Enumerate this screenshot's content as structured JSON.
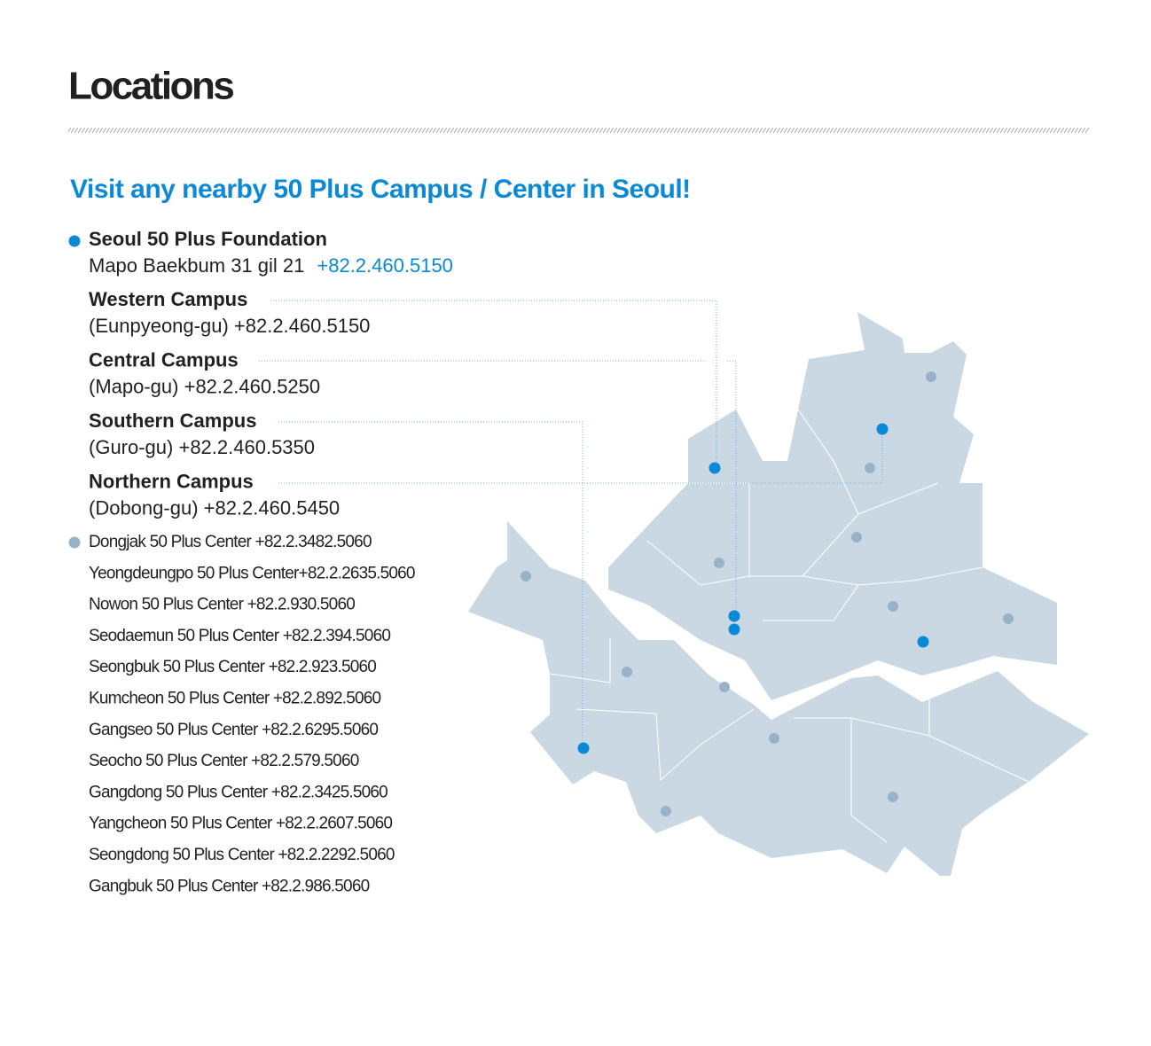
{
  "header": {
    "title": "Locations",
    "subtitle": "Visit any nearby 50 Plus Campus / Center in Seoul!"
  },
  "foundation": {
    "name": "Seoul 50 Plus Foundation",
    "address": "Mapo Baekbum 31 gil 21",
    "phone": "+82.2.460.5150"
  },
  "campuses": [
    {
      "name": "Western Campus",
      "detail": "(Eunpyeong-gu) +82.2.460.5150"
    },
    {
      "name": "Central Campus",
      "detail": "(Mapo-gu) +82.2.460.5250"
    },
    {
      "name": "Southern Campus",
      "detail": "(Guro-gu) +82.2.460.5350"
    },
    {
      "name": "Northern Campus",
      "detail": "(Dobong-gu) +82.2.460.5450"
    }
  ],
  "centers": [
    "Dongjak 50 Plus Center +82.2.3482.5060",
    "Yeongdeungpo 50 Plus Center+82.2.2635.5060",
    "Nowon 50 Plus Center +82.2.930.5060",
    "Seodaemun 50 Plus Center +82.2.394.5060",
    "Seongbuk 50 Plus Center +82.2.923.5060",
    "Kumcheon 50 Plus Center +82.2.892.5060",
    "Gangseo 50 Plus Center +82.2.6295.5060",
    "Seocho 50 Plus Center +82.2.579.5060",
    "Gangdong 50 Plus Center +82.2.3425.5060",
    "Yangcheon 50 Plus Center +82.2.2607.5060",
    "Seongdong 50 Plus Center +82.2.2292.5060",
    "Gangbuk 50 Plus Center +82.2.986.5060"
  ]
}
